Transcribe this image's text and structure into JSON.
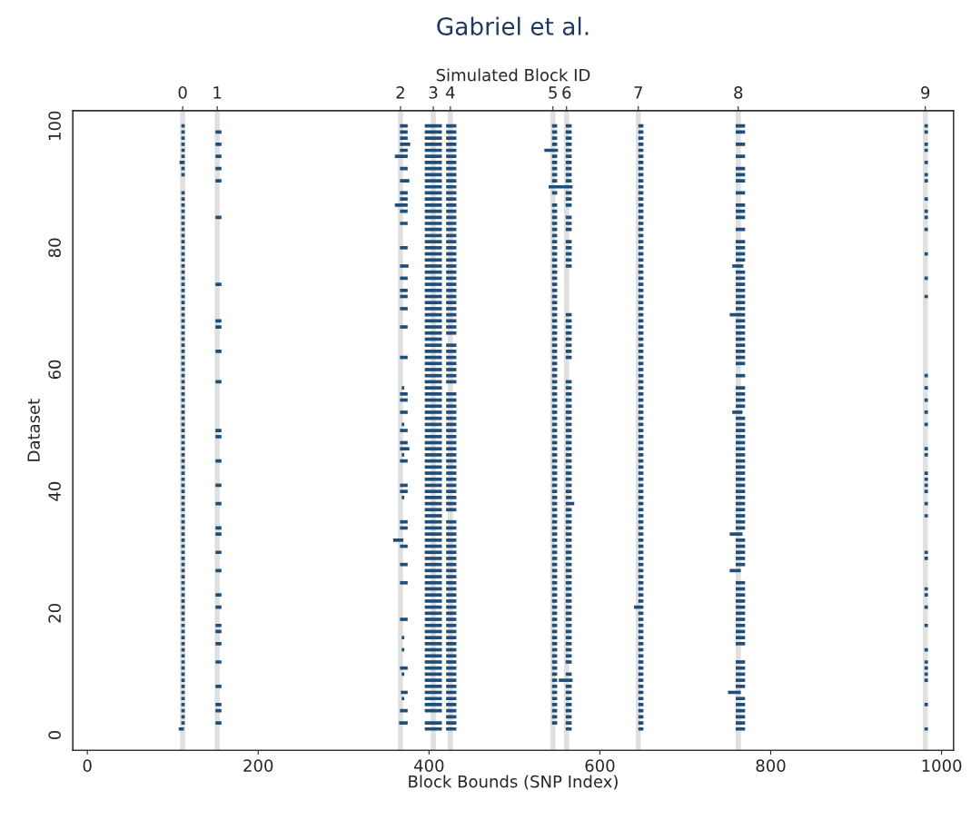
{
  "chart_data": {
    "type": "bar",
    "orientation": "horizontal",
    "title": "Gabriel et al.",
    "xlabel": "Block Bounds (SNP Index)",
    "ylabel": "Dataset",
    "x2label": "Simulated Block ID",
    "xlim": [
      -17,
      1014
    ],
    "xticks": [
      0,
      200,
      400,
      600,
      800,
      1000
    ],
    "grid": false,
    "categories": [
      "100",
      null,
      null,
      null,
      null,
      null,
      null,
      null,
      null,
      null,
      null,
      null,
      null,
      null,
      null,
      null,
      null,
      null,
      null,
      null,
      "80",
      null,
      null,
      null,
      null,
      null,
      null,
      null,
      null,
      null,
      null,
      null,
      null,
      null,
      null,
      null,
      null,
      null,
      null,
      null,
      "60",
      null,
      null,
      null,
      null,
      null,
      null,
      null,
      null,
      null,
      null,
      null,
      null,
      null,
      null,
      null,
      null,
      null,
      null,
      null,
      "40",
      null,
      null,
      null,
      null,
      null,
      null,
      null,
      null,
      null,
      null,
      null,
      null,
      null,
      null,
      null,
      null,
      null,
      null,
      null,
      "20",
      null,
      null,
      null,
      null,
      null,
      null,
      null,
      null,
      null,
      null,
      null,
      null,
      null,
      null,
      null,
      null,
      null,
      null,
      null,
      "0"
    ],
    "bands": [
      {
        "axis": "x",
        "from": 108.6,
        "to": 114.6,
        "label": "0",
        "color": "#e0e0e0"
      },
      {
        "axis": "x",
        "from": 149,
        "to": 155,
        "label": "1",
        "color": "#e0e0e0"
      },
      {
        "axis": "x",
        "from": 363.6,
        "to": 369.6,
        "label": "2",
        "color": "#e0e0e0"
      },
      {
        "axis": "x",
        "from": 402,
        "to": 408,
        "label": "3",
        "color": "#e0e0e0"
      },
      {
        "axis": "x",
        "from": 422,
        "to": 428,
        "label": "4",
        "color": "#e0e0e0"
      },
      {
        "axis": "x",
        "from": 542,
        "to": 548,
        "label": "5",
        "color": "#e0e0e0"
      },
      {
        "axis": "x",
        "from": 558,
        "to": 564,
        "label": "6",
        "color": "#e0e0e0"
      },
      {
        "axis": "x",
        "from": 642,
        "to": 648,
        "label": "7",
        "color": "#e0e0e0"
      },
      {
        "axis": "x",
        "from": 759,
        "to": 765,
        "label": "8",
        "color": "#e0e0e0"
      },
      {
        "axis": "x",
        "from": 978,
        "to": 984,
        "label": "9",
        "color": "#e0e0e0"
      }
    ],
    "series": [
      {
        "color": "#1f4e79",
        "values": [
          4,
          4,
          4,
          4,
          4,
          4,
          6,
          4,
          4,
          null,
          null,
          4,
          4,
          4,
          4,
          4,
          4,
          4,
          4,
          4,
          4,
          4,
          4,
          4,
          4,
          4,
          4,
          4,
          4,
          4,
          4,
          4,
          4,
          4,
          4,
          4,
          4,
          4,
          4,
          4,
          4,
          4,
          4,
          4,
          4,
          4,
          4,
          4,
          4,
          4,
          4,
          4,
          4,
          4,
          4,
          4,
          4,
          4,
          4,
          4,
          4,
          4,
          4,
          4,
          4,
          4,
          4,
          4,
          4,
          4,
          4,
          4,
          4,
          4,
          4,
          4,
          4,
          4,
          4,
          4,
          4,
          4,
          4,
          4,
          4,
          4,
          4,
          4,
          4,
          4,
          4,
          4,
          4,
          4,
          4,
          4,
          4,
          4,
          4,
          6,
          null
        ],
        "base": [
          110,
          110,
          110,
          110,
          110,
          110,
          108,
          110,
          110,
          null,
          null,
          110,
          110,
          110,
          110,
          110,
          110,
          110,
          110,
          110,
          110,
          110,
          110,
          110,
          110,
          110,
          110,
          110,
          110,
          110,
          110,
          110,
          110,
          110,
          110,
          110,
          110,
          110,
          110,
          110,
          110,
          110,
          110,
          110,
          110,
          110,
          110,
          110,
          110,
          110,
          110,
          110,
          110,
          110,
          110,
          110,
          110,
          110,
          110,
          110,
          110,
          110,
          110,
          110,
          110,
          110,
          110,
          110,
          110,
          110,
          110,
          110,
          110,
          110,
          110,
          110,
          110,
          110,
          110,
          110,
          110,
          110,
          110,
          110,
          110,
          110,
          110,
          110,
          110,
          110,
          110,
          110,
          110,
          110,
          110,
          110,
          110,
          110,
          110,
          107,
          null
        ]
      },
      {
        "color": "#1f4e79",
        "values": [
          null,
          7,
          null,
          7,
          null,
          7,
          null,
          7,
          null,
          7,
          null,
          null,
          null,
          null,
          null,
          7,
          null,
          null,
          null,
          null,
          null,
          null,
          null,
          null,
          null,
          null,
          7,
          null,
          null,
          null,
          null,
          null,
          7,
          7,
          null,
          null,
          null,
          7,
          null,
          null,
          null,
          null,
          7,
          null,
          null,
          null,
          null,
          null,
          null,
          null,
          7,
          7,
          null,
          null,
          null,
          7,
          null,
          null,
          null,
          7,
          null,
          null,
          7,
          null,
          null,
          null,
          7,
          7,
          null,
          null,
          7,
          null,
          null,
          7,
          null,
          null,
          null,
          7,
          null,
          7,
          null,
          null,
          7,
          7,
          null,
          7,
          null,
          null,
          7,
          null,
          null,
          null,
          7,
          null,
          null,
          7,
          7,
          null,
          7,
          null,
          null
        ],
        "base": [
          null,
          150,
          null,
          150,
          null,
          150,
          null,
          150,
          null,
          150,
          null,
          null,
          null,
          null,
          null,
          150,
          null,
          null,
          null,
          null,
          null,
          null,
          null,
          null,
          null,
          null,
          150,
          null,
          null,
          null,
          null,
          null,
          150,
          150,
          null,
          null,
          null,
          150,
          null,
          null,
          null,
          null,
          150,
          null,
          null,
          null,
          null,
          null,
          null,
          null,
          150,
          150,
          null,
          null,
          null,
          150,
          null,
          null,
          null,
          150,
          null,
          null,
          150,
          null,
          null,
          null,
          150,
          150,
          null,
          null,
          150,
          null,
          null,
          150,
          null,
          null,
          null,
          150,
          null,
          150,
          null,
          null,
          150,
          150,
          null,
          150,
          null,
          null,
          150,
          null,
          null,
          null,
          150,
          null,
          null,
          150,
          150,
          null,
          150,
          null,
          null
        ]
      },
      {
        "color": "#1f4e79",
        "values": [
          9,
          9,
          9,
          12,
          9,
          15,
          null,
          9,
          null,
          11,
          null,
          9,
          9,
          15,
          9,
          null,
          9,
          null,
          null,
          null,
          9,
          null,
          null,
          10,
          null,
          9,
          null,
          9,
          9,
          null,
          9,
          null,
          null,
          9,
          null,
          null,
          null,
          null,
          9,
          null,
          null,
          null,
          null,
          3,
          9,
          9,
          null,
          9,
          null,
          3,
          9,
          null,
          9,
          11,
          3,
          9,
          null,
          null,
          null,
          9,
          9,
          3,
          null,
          null,
          null,
          9,
          9,
          null,
          12,
          9,
          null,
          null,
          9,
          null,
          null,
          9,
          null,
          null,
          null,
          null,
          null,
          9,
          null,
          null,
          3,
          null,
          3,
          null,
          null,
          9,
          3,
          null,
          null,
          8,
          3,
          null,
          9,
          null,
          10,
          null,
          null
        ],
        "base": [
          366,
          366,
          366,
          366,
          366,
          360,
          null,
          366,
          null,
          366,
          null,
          366,
          366,
          360,
          366,
          null,
          366,
          null,
          null,
          null,
          366,
          null,
          null,
          366,
          null,
          366,
          null,
          366,
          366,
          null,
          366,
          null,
          null,
          366,
          null,
          null,
          null,
          null,
          366,
          null,
          null,
          null,
          null,
          368,
          366,
          366,
          null,
          366,
          null,
          368,
          366,
          null,
          366,
          366,
          368,
          366,
          null,
          null,
          null,
          366,
          366,
          368,
          null,
          null,
          null,
          366,
          366,
          null,
          358,
          366,
          null,
          null,
          366,
          null,
          null,
          366,
          null,
          null,
          null,
          null,
          null,
          366,
          null,
          null,
          368,
          null,
          368,
          null,
          null,
          366,
          368,
          null,
          null,
          367,
          368,
          null,
          366,
          null,
          365,
          null,
          null
        ]
      },
      {
        "color": "#1f4e79",
        "values": [
          20,
          20,
          20,
          20,
          20,
          20,
          20,
          20,
          20,
          20,
          20,
          20,
          20,
          20,
          20,
          20,
          20,
          20,
          20,
          20,
          20,
          20,
          20,
          20,
          20,
          20,
          20,
          20,
          20,
          20,
          20,
          20,
          20,
          20,
          20,
          20,
          20,
          20,
          20,
          20,
          20,
          20,
          20,
          20,
          20,
          20,
          20,
          20,
          20,
          20,
          20,
          20,
          20,
          20,
          20,
          20,
          20,
          20,
          20,
          20,
          20,
          20,
          20,
          20,
          20,
          20,
          20,
          20,
          20,
          20,
          20,
          20,
          20,
          20,
          20,
          20,
          20,
          20,
          20,
          20,
          20,
          20,
          20,
          20,
          20,
          20,
          20,
          20,
          20,
          20,
          20,
          20,
          20,
          20,
          20,
          20,
          20,
          null,
          20,
          20,
          null
        ],
        "base": [
          395,
          395,
          395,
          395,
          395,
          395,
          395,
          395,
          395,
          395,
          395,
          395,
          395,
          395,
          395,
          395,
          395,
          395,
          395,
          395,
          395,
          395,
          395,
          395,
          395,
          395,
          395,
          395,
          395,
          395,
          395,
          395,
          395,
          395,
          395,
          395,
          395,
          395,
          395,
          395,
          395,
          395,
          395,
          395,
          395,
          395,
          395,
          395,
          395,
          395,
          395,
          395,
          395,
          395,
          395,
          395,
          395,
          395,
          395,
          395,
          395,
          395,
          395,
          395,
          395,
          395,
          395,
          395,
          395,
          395,
          395,
          395,
          395,
          395,
          395,
          395,
          395,
          395,
          395,
          395,
          395,
          395,
          395,
          395,
          395,
          395,
          395,
          395,
          395,
          395,
          395,
          395,
          395,
          395,
          395,
          395,
          395,
          null,
          395,
          395,
          null
        ]
      },
      {
        "color": "#1f4e79",
        "values": [
          12,
          12,
          12,
          12,
          12,
          12,
          12,
          12,
          12,
          12,
          12,
          12,
          12,
          12,
          12,
          12,
          12,
          12,
          12,
          12,
          12,
          12,
          12,
          12,
          12,
          12,
          12,
          12,
          12,
          12,
          12,
          12,
          12,
          12,
          12,
          null,
          12,
          12,
          12,
          12,
          12,
          12,
          12,
          null,
          12,
          12,
          12,
          12,
          12,
          12,
          12,
          12,
          12,
          12,
          12,
          12,
          12,
          12,
          12,
          12,
          12,
          12,
          12,
          12,
          null,
          12,
          12,
          12,
          12,
          12,
          12,
          12,
          12,
          12,
          12,
          12,
          12,
          12,
          12,
          12,
          12,
          12,
          12,
          12,
          12,
          12,
          12,
          12,
          12,
          12,
          12,
          12,
          12,
          12,
          12,
          12,
          12,
          12,
          12,
          12,
          null
        ],
        "base": [
          420,
          420,
          420,
          420,
          420,
          420,
          420,
          420,
          420,
          420,
          420,
          420,
          420,
          420,
          420,
          420,
          420,
          420,
          420,
          420,
          420,
          420,
          420,
          420,
          420,
          420,
          420,
          420,
          420,
          420,
          420,
          420,
          420,
          420,
          420,
          null,
          420,
          420,
          420,
          420,
          420,
          420,
          420,
          null,
          420,
          420,
          420,
          420,
          420,
          420,
          420,
          420,
          420,
          420,
          420,
          420,
          420,
          420,
          420,
          420,
          420,
          420,
          420,
          420,
          null,
          420,
          420,
          420,
          420,
          420,
          420,
          420,
          420,
          420,
          420,
          420,
          420,
          420,
          420,
          420,
          420,
          420,
          420,
          420,
          420,
          420,
          420,
          420,
          420,
          420,
          420,
          420,
          420,
          420,
          420,
          420,
          420,
          420,
          420,
          420,
          null
        ]
      },
      {
        "color": "#1f4e79",
        "values": [
          6,
          6,
          6,
          6,
          16,
          6,
          6,
          6,
          6,
          6,
          18,
          6,
          null,
          6,
          6,
          6,
          6,
          6,
          6,
          6,
          6,
          6,
          6,
          6,
          6,
          6,
          6,
          6,
          6,
          6,
          6,
          6,
          6,
          6,
          6,
          6,
          6,
          6,
          6,
          6,
          6,
          6,
          6,
          6,
          6,
          6,
          6,
          6,
          6,
          6,
          6,
          6,
          6,
          6,
          6,
          6,
          6,
          6,
          6,
          6,
          6,
          6,
          6,
          6,
          6,
          6,
          6,
          6,
          6,
          6,
          6,
          6,
          6,
          6,
          6,
          6,
          6,
          6,
          6,
          6,
          6,
          6,
          6,
          6,
          6,
          6,
          6,
          6,
          6,
          6,
          6,
          6,
          6,
          6,
          6,
          6,
          6,
          6,
          6,
          null,
          null
        ],
        "base": [
          544,
          544,
          544,
          544,
          535,
          544,
          544,
          544,
          544,
          544,
          540,
          544,
          null,
          544,
          544,
          544,
          544,
          544,
          544,
          544,
          544,
          544,
          544,
          544,
          544,
          544,
          544,
          544,
          544,
          544,
          544,
          544,
          544,
          544,
          544,
          544,
          544,
          544,
          544,
          544,
          544,
          544,
          544,
          544,
          544,
          544,
          544,
          544,
          544,
          544,
          544,
          544,
          544,
          544,
          544,
          544,
          544,
          544,
          544,
          544,
          544,
          544,
          544,
          544,
          544,
          544,
          544,
          544,
          544,
          544,
          544,
          544,
          544,
          544,
          544,
          544,
          544,
          544,
          544,
          544,
          544,
          544,
          544,
          544,
          544,
          544,
          544,
          544,
          544,
          544,
          544,
          544,
          544,
          544,
          544,
          544,
          544,
          544,
          544,
          null,
          null
        ]
      },
      {
        "color": "#1f4e79",
        "values": [
          7,
          7,
          7,
          7,
          7,
          7,
          7,
          7,
          7,
          7,
          10,
          7,
          7,
          7,
          null,
          7,
          7,
          7,
          null,
          7,
          7,
          7,
          7,
          7,
          null,
          null,
          null,
          null,
          null,
          null,
          null,
          7,
          7,
          7,
          7,
          7,
          7,
          7,
          7,
          null,
          null,
          null,
          7,
          7,
          7,
          7,
          7,
          7,
          7,
          7,
          7,
          7,
          7,
          7,
          7,
          7,
          7,
          7,
          7,
          7,
          7,
          7,
          10,
          7,
          7,
          7,
          7,
          7,
          7,
          7,
          7,
          7,
          7,
          7,
          7,
          7,
          7,
          7,
          7,
          7,
          7,
          7,
          7,
          7,
          7,
          7,
          7,
          7,
          7,
          null,
          7,
          16,
          7,
          7,
          7,
          7,
          7,
          7,
          7,
          7,
          null
        ],
        "base": [
          560,
          560,
          560,
          560,
          560,
          560,
          560,
          560,
          560,
          560,
          558,
          560,
          560,
          560,
          null,
          560,
          560,
          560,
          null,
          560,
          560,
          560,
          560,
          560,
          null,
          null,
          null,
          null,
          null,
          null,
          null,
          560,
          560,
          560,
          560,
          560,
          560,
          560,
          560,
          null,
          null,
          null,
          560,
          560,
          560,
          560,
          560,
          560,
          560,
          560,
          560,
          560,
          560,
          560,
          560,
          560,
          560,
          560,
          560,
          560,
          560,
          560,
          560,
          560,
          560,
          560,
          560,
          560,
          560,
          560,
          560,
          560,
          560,
          560,
          560,
          560,
          560,
          560,
          560,
          560,
          560,
          560,
          560,
          560,
          560,
          560,
          560,
          560,
          560,
          null,
          560,
          552,
          560,
          560,
          560,
          560,
          560,
          560,
          560,
          560,
          null
        ]
      },
      {
        "color": "#1f4e79",
        "values": [
          6,
          6,
          6,
          6,
          6,
          6,
          6,
          6,
          6,
          6,
          6,
          6,
          6,
          6,
          6,
          6,
          6,
          6,
          6,
          6,
          6,
          6,
          6,
          6,
          6,
          6,
          6,
          6,
          6,
          6,
          6,
          6,
          6,
          6,
          6,
          6,
          6,
          6,
          6,
          6,
          6,
          6,
          6,
          6,
          6,
          6,
          6,
          6,
          6,
          6,
          6,
          6,
          6,
          6,
          6,
          6,
          6,
          6,
          6,
          6,
          6,
          6,
          6,
          6,
          6,
          6,
          6,
          6,
          6,
          6,
          6,
          6,
          6,
          6,
          6,
          6,
          6,
          6,
          6,
          11,
          6,
          6,
          6,
          6,
          6,
          6,
          6,
          6,
          6,
          6,
          6,
          6,
          6,
          6,
          6,
          6,
          6,
          6,
          6,
          6,
          null
        ],
        "base": [
          645,
          645,
          645,
          645,
          645,
          645,
          645,
          645,
          645,
          645,
          645,
          645,
          645,
          645,
          645,
          645,
          645,
          645,
          645,
          645,
          645,
          645,
          645,
          645,
          645,
          645,
          645,
          645,
          645,
          645,
          645,
          645,
          645,
          645,
          645,
          645,
          645,
          645,
          645,
          645,
          645,
          645,
          645,
          645,
          645,
          645,
          645,
          645,
          645,
          645,
          645,
          645,
          645,
          645,
          645,
          645,
          645,
          645,
          645,
          645,
          645,
          645,
          645,
          645,
          645,
          645,
          645,
          645,
          645,
          645,
          645,
          645,
          645,
          645,
          645,
          645,
          645,
          645,
          645,
          640,
          645,
          645,
          645,
          645,
          645,
          645,
          645,
          645,
          645,
          645,
          645,
          645,
          645,
          645,
          645,
          645,
          645,
          645,
          645,
          645,
          null
        ]
      },
      {
        "color": "#1f4e79",
        "values": [
          11,
          11,
          null,
          11,
          null,
          11,
          null,
          11,
          11,
          11,
          null,
          11,
          null,
          11,
          11,
          11,
          null,
          11,
          null,
          11,
          11,
          11,
          11,
          13,
          11,
          11,
          11,
          11,
          11,
          11,
          11,
          18,
          11,
          11,
          11,
          11,
          11,
          11,
          11,
          11,
          null,
          11,
          null,
          11,
          11,
          11,
          11,
          12,
          11,
          11,
          11,
          11,
          11,
          11,
          11,
          11,
          11,
          11,
          11,
          11,
          11,
          11,
          11,
          11,
          11,
          11,
          11,
          15,
          11,
          11,
          11,
          11,
          11,
          13,
          null,
          11,
          11,
          11,
          11,
          11,
          11,
          11,
          11,
          11,
          11,
          11,
          null,
          null,
          11,
          11,
          11,
          11,
          11,
          15,
          11,
          11,
          11,
          11,
          11,
          11,
          null
        ],
        "base": [
          759,
          759,
          null,
          759,
          null,
          759,
          null,
          759,
          759,
          759,
          null,
          759,
          null,
          759,
          759,
          759,
          null,
          759,
          null,
          759,
          759,
          759,
          759,
          755,
          759,
          759,
          759,
          759,
          759,
          759,
          759,
          752,
          759,
          759,
          759,
          759,
          759,
          759,
          759,
          759,
          null,
          759,
          null,
          759,
          759,
          759,
          759,
          755,
          759,
          759,
          759,
          759,
          759,
          759,
          759,
          759,
          759,
          759,
          759,
          759,
          759,
          759,
          759,
          759,
          759,
          759,
          759,
          752,
          759,
          759,
          759,
          759,
          759,
          752,
          null,
          759,
          759,
          759,
          759,
          759,
          759,
          759,
          759,
          759,
          759,
          759,
          null,
          null,
          759,
          759,
          759,
          759,
          759,
          750,
          759,
          759,
          759,
          759,
          759,
          759,
          null
        ]
      },
      {
        "color": "#1f4e79",
        "values": [
          4,
          4,
          null,
          4,
          4,
          null,
          4,
          null,
          4,
          4,
          null,
          null,
          4,
          null,
          4,
          4,
          null,
          4,
          null,
          null,
          null,
          4,
          null,
          null,
          null,
          4,
          null,
          null,
          4,
          null,
          null,
          null,
          null,
          null,
          null,
          null,
          null,
          null,
          null,
          null,
          null,
          4,
          null,
          4,
          null,
          4,
          null,
          4,
          null,
          4,
          null,
          null,
          null,
          4,
          4,
          null,
          null,
          4,
          4,
          4,
          4,
          null,
          4,
          null,
          4,
          null,
          null,
          null,
          null,
          null,
          4,
          4,
          null,
          null,
          null,
          null,
          4,
          4,
          null,
          4,
          null,
          null,
          4,
          null,
          null,
          null,
          4,
          null,
          4,
          4,
          4,
          4,
          null,
          null,
          null,
          4,
          null,
          null,
          null,
          4,
          null
        ],
        "base": [
          980,
          980,
          null,
          980,
          980,
          null,
          980,
          null,
          980,
          980,
          null,
          null,
          980,
          null,
          980,
          980,
          null,
          980,
          null,
          null,
          null,
          980,
          null,
          null,
          null,
          980,
          null,
          null,
          980,
          null,
          null,
          null,
          null,
          null,
          null,
          null,
          null,
          null,
          null,
          null,
          null,
          980,
          null,
          980,
          null,
          980,
          null,
          980,
          null,
          980,
          null,
          null,
          null,
          980,
          980,
          null,
          null,
          980,
          980,
          980,
          980,
          null,
          980,
          null,
          980,
          null,
          null,
          null,
          null,
          null,
          980,
          980,
          null,
          null,
          null,
          null,
          980,
          980,
          null,
          980,
          null,
          null,
          980,
          null,
          null,
          null,
          980,
          null,
          980,
          980,
          980,
          980,
          null,
          null,
          null,
          980,
          null,
          null,
          null,
          980,
          null
        ]
      }
    ]
  }
}
